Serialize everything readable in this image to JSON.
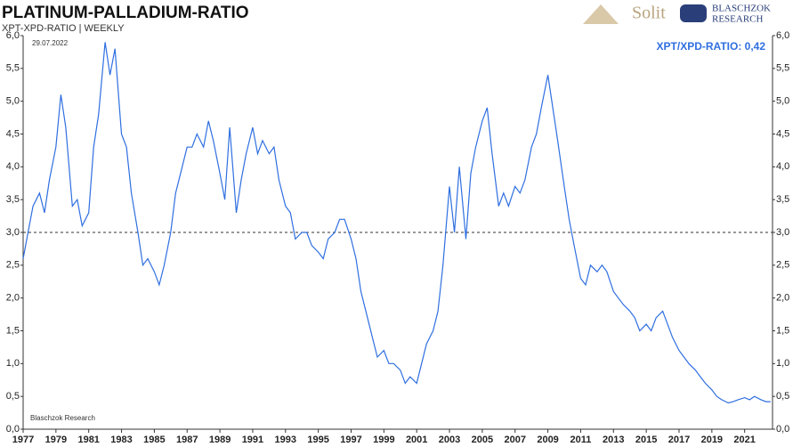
{
  "chart_data": {
    "type": "line",
    "title": "PLATINUM-PALLADIUM-RATIO",
    "subtitle": "XPT-XPD-RATIO | WEEKLY",
    "date": "29.07.2022",
    "annotation": "XPT/XPD-RATIO: 0,42",
    "source": "Blaschzok  Research",
    "logo_solit": "Solit",
    "logo_blaschzok": "BLASCHZOK",
    "logo_research": "RESEARCH",
    "reference_line": 3,
    "xlim": [
      1977,
      2022.7
    ],
    "xticks": [
      1977,
      1979,
      1981,
      1983,
      1985,
      1987,
      1989,
      1991,
      1993,
      1995,
      1997,
      1999,
      2001,
      2003,
      2005,
      2007,
      2009,
      2011,
      2013,
      2015,
      2017,
      2019,
      2021
    ],
    "ylim": [
      0,
      6
    ],
    "yticks": [
      {
        "value": 0,
        "label": "0,0"
      },
      {
        "value": 0.5,
        "label": "0,5"
      },
      {
        "value": 1,
        "label": "1,0"
      },
      {
        "value": 1.5,
        "label": "1,5"
      },
      {
        "value": 2,
        "label": "2,0"
      },
      {
        "value": 2.5,
        "label": "2,5"
      },
      {
        "value": 3,
        "label": "3,0"
      },
      {
        "value": 3.5,
        "label": "3,5"
      },
      {
        "value": 4,
        "label": "4,0"
      },
      {
        "value": 4.5,
        "label": "4,5"
      },
      {
        "value": 5,
        "label": "5,0"
      },
      {
        "value": 5.5,
        "label": "5,5"
      },
      {
        "value": 6,
        "label": "6,0"
      }
    ],
    "color": "#2f6fe0",
    "x": [
      1977.0,
      1977.3,
      1977.6,
      1978.0,
      1978.3,
      1978.6,
      1979.0,
      1979.3,
      1979.6,
      1980.0,
      1980.3,
      1980.6,
      1981.0,
      1981.3,
      1981.6,
      1982.0,
      1982.3,
      1982.6,
      1983.0,
      1983.3,
      1983.6,
      1984.0,
      1984.3,
      1984.6,
      1985.0,
      1985.3,
      1985.6,
      1986.0,
      1986.3,
      1986.6,
      1987.0,
      1987.3,
      1987.6,
      1988.0,
      1988.3,
      1988.6,
      1989.0,
      1989.3,
      1989.6,
      1990.0,
      1990.3,
      1990.6,
      1991.0,
      1991.3,
      1991.6,
      1992.0,
      1992.3,
      1992.6,
      1993.0,
      1993.3,
      1993.6,
      1994.0,
      1994.3,
      1994.6,
      1995.0,
      1995.3,
      1995.6,
      1996.0,
      1996.3,
      1996.6,
      1997.0,
      1997.3,
      1997.6,
      1998.0,
      1998.3,
      1998.6,
      1999.0,
      1999.3,
      1999.6,
      2000.0,
      2000.3,
      2000.6,
      2001.0,
      2001.3,
      2001.6,
      2002.0,
      2002.3,
      2002.6,
      2003.0,
      2003.3,
      2003.6,
      2004.0,
      2004.3,
      2004.6,
      2005.0,
      2005.3,
      2005.6,
      2006.0,
      2006.3,
      2006.6,
      2007.0,
      2007.3,
      2007.6,
      2008.0,
      2008.3,
      2008.6,
      2009.0,
      2009.3,
      2009.6,
      2010.0,
      2010.3,
      2010.6,
      2011.0,
      2011.3,
      2011.6,
      2012.0,
      2012.3,
      2012.6,
      2013.0,
      2013.3,
      2013.6,
      2014.0,
      2014.3,
      2014.6,
      2015.0,
      2015.3,
      2015.6,
      2016.0,
      2016.3,
      2016.6,
      2017.0,
      2017.3,
      2017.6,
      2018.0,
      2018.3,
      2018.6,
      2019.0,
      2019.3,
      2019.6,
      2020.0,
      2020.3,
      2020.6,
      2021.0,
      2021.3,
      2021.6,
      2022.0,
      2022.3,
      2022.58
    ],
    "values": [
      2.6,
      3.0,
      3.4,
      3.6,
      3.3,
      3.8,
      4.3,
      5.1,
      4.6,
      3.4,
      3.5,
      3.1,
      3.3,
      4.3,
      4.8,
      5.9,
      5.4,
      5.8,
      4.5,
      4.3,
      3.6,
      3.0,
      2.5,
      2.6,
      2.4,
      2.2,
      2.5,
      3.0,
      3.6,
      3.9,
      4.3,
      4.3,
      4.5,
      4.3,
      4.7,
      4.4,
      3.9,
      3.5,
      4.6,
      3.3,
      3.8,
      4.2,
      4.6,
      4.2,
      4.4,
      4.2,
      4.3,
      3.8,
      3.4,
      3.3,
      2.9,
      3.0,
      3.0,
      2.8,
      2.7,
      2.6,
      2.9,
      3.0,
      3.2,
      3.2,
      2.9,
      2.6,
      2.1,
      1.7,
      1.4,
      1.1,
      1.2,
      1.0,
      1.0,
      0.9,
      0.7,
      0.8,
      0.7,
      1.0,
      1.3,
      1.5,
      1.8,
      2.5,
      3.7,
      3.0,
      4.0,
      2.9,
      3.9,
      4.3,
      4.7,
      4.9,
      4.2,
      3.4,
      3.6,
      3.4,
      3.7,
      3.6,
      3.8,
      4.3,
      4.5,
      4.9,
      5.4,
      4.9,
      4.4,
      3.7,
      3.2,
      2.8,
      2.3,
      2.2,
      2.5,
      2.4,
      2.5,
      2.4,
      2.1,
      2.0,
      1.9,
      1.8,
      1.7,
      1.5,
      1.6,
      1.5,
      1.7,
      1.8,
      1.6,
      1.4,
      1.2,
      1.1,
      1.0,
      0.9,
      0.8,
      0.7,
      0.6,
      0.5,
      0.45,
      0.4,
      0.42,
      0.45,
      0.48,
      0.45,
      0.5,
      0.45,
      0.42,
      0.42
    ]
  }
}
